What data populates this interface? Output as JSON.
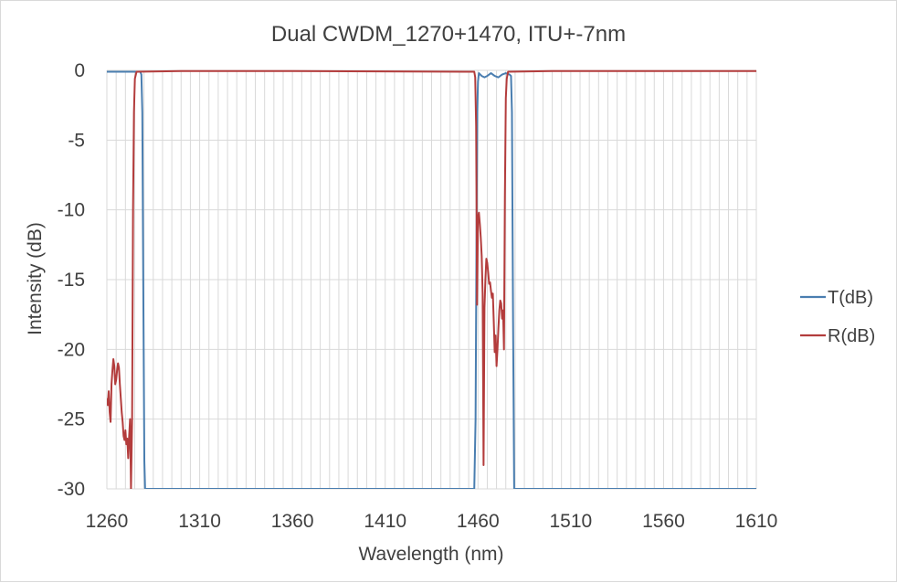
{
  "chart_data": {
    "type": "line",
    "title": "Dual CWDM_1270+1470, ITU+-7nm",
    "xlabel": "Wavelength (nm)",
    "ylabel": "Intensity (dB)",
    "xlim": [
      1260,
      1610
    ],
    "ylim": [
      -30,
      0
    ],
    "x_ticks": [
      1260,
      1310,
      1360,
      1410,
      1460,
      1510,
      1560,
      1610
    ],
    "y_ticks": [
      0,
      -5,
      -10,
      -15,
      -20,
      -25,
      -30
    ],
    "x_minor_step": 5,
    "grid": true,
    "legend_position": "right",
    "series": [
      {
        "name": "T(dB)",
        "color": "#4a7eb0",
        "points": [
          [
            1260,
            -0.1
          ],
          [
            1271,
            -0.1
          ],
          [
            1278,
            -0.1
          ],
          [
            1278.6,
            -0.3
          ],
          [
            1279.1,
            -3
          ],
          [
            1279.6,
            -15
          ],
          [
            1280.2,
            -28
          ],
          [
            1280.6,
            -30
          ],
          [
            1281,
            -30
          ],
          [
            1458,
            -30
          ],
          [
            1458.7,
            -25
          ],
          [
            1459.2,
            -12
          ],
          [
            1459.6,
            -3
          ],
          [
            1460,
            -0.8
          ],
          [
            1460.5,
            -0.2
          ],
          [
            1462,
            -0.4
          ],
          [
            1463.5,
            -0.5
          ],
          [
            1465,
            -0.4
          ],
          [
            1467,
            -0.2
          ],
          [
            1469,
            -0.4
          ],
          [
            1471,
            -0.5
          ],
          [
            1473,
            -0.3
          ],
          [
            1475,
            -0.2
          ],
          [
            1477,
            -0.3
          ],
          [
            1477.8,
            -0.4
          ],
          [
            1478.3,
            -3
          ],
          [
            1478.9,
            -18
          ],
          [
            1479.5,
            -30
          ],
          [
            1610,
            -30
          ]
        ]
      },
      {
        "name": "R(dB)",
        "color": "#b33c3c",
        "points": [
          [
            1260,
            -23.5
          ],
          [
            1260.5,
            -24
          ],
          [
            1261,
            -23
          ],
          [
            1261.5,
            -24.5
          ],
          [
            1262,
            -25.2
          ],
          [
            1262.5,
            -22.5
          ],
          [
            1263,
            -21.5
          ],
          [
            1263.5,
            -20.7
          ],
          [
            1264,
            -21.2
          ],
          [
            1264.5,
            -22.5
          ],
          [
            1265,
            -22.2
          ],
          [
            1265.5,
            -21.5
          ],
          [
            1266,
            -21.0
          ],
          [
            1266.5,
            -21.3
          ],
          [
            1267,
            -22.5
          ],
          [
            1267.5,
            -23.5
          ],
          [
            1268,
            -24.5
          ],
          [
            1268.5,
            -25.2
          ],
          [
            1269,
            -26.2
          ],
          [
            1269.5,
            -26.5
          ],
          [
            1270,
            -25.8
          ],
          [
            1270.5,
            -26.8
          ],
          [
            1271,
            -26.4
          ],
          [
            1271.5,
            -27.8
          ],
          [
            1272,
            -26.2
          ],
          [
            1272.5,
            -25.0
          ],
          [
            1273,
            -30
          ],
          [
            1273.6,
            -25
          ],
          [
            1274.1,
            -10
          ],
          [
            1274.6,
            -3
          ],
          [
            1275.1,
            -0.6
          ],
          [
            1276,
            -0.1
          ],
          [
            1300,
            -0.05
          ],
          [
            1360,
            -0.05
          ],
          [
            1458,
            -0.1
          ],
          [
            1458.5,
            -0.5
          ],
          [
            1459,
            -4
          ],
          [
            1459.5,
            -16.8
          ],
          [
            1460,
            -10.5
          ],
          [
            1460.5,
            -10.2
          ],
          [
            1461,
            -11
          ],
          [
            1461.5,
            -12
          ],
          [
            1462,
            -13.3
          ],
          [
            1462.5,
            -16
          ],
          [
            1463,
            -28.3
          ],
          [
            1463.5,
            -17
          ],
          [
            1464,
            -15
          ],
          [
            1464.5,
            -13.5
          ],
          [
            1465,
            -13.8
          ],
          [
            1465.5,
            -14.5
          ],
          [
            1466,
            -15.3
          ],
          [
            1466.5,
            -15.2
          ],
          [
            1467,
            -15.8
          ],
          [
            1467.5,
            -16.3
          ],
          [
            1468,
            -16
          ],
          [
            1468.5,
            -18
          ],
          [
            1469,
            -20.2
          ],
          [
            1469.5,
            -19
          ],
          [
            1470,
            -21.2
          ],
          [
            1470.5,
            -20
          ],
          [
            1471,
            -18.5
          ],
          [
            1471.5,
            -17.2
          ],
          [
            1472,
            -16.5
          ],
          [
            1472.5,
            -16.7
          ],
          [
            1473,
            -17.8
          ],
          [
            1473.5,
            -17.2
          ],
          [
            1474,
            -20
          ],
          [
            1474.5,
            -9
          ],
          [
            1475,
            -2
          ],
          [
            1475.5,
            -0.6
          ],
          [
            1476.2,
            -0.1
          ],
          [
            1500,
            -0.05
          ],
          [
            1610,
            -0.05
          ]
        ]
      }
    ]
  }
}
